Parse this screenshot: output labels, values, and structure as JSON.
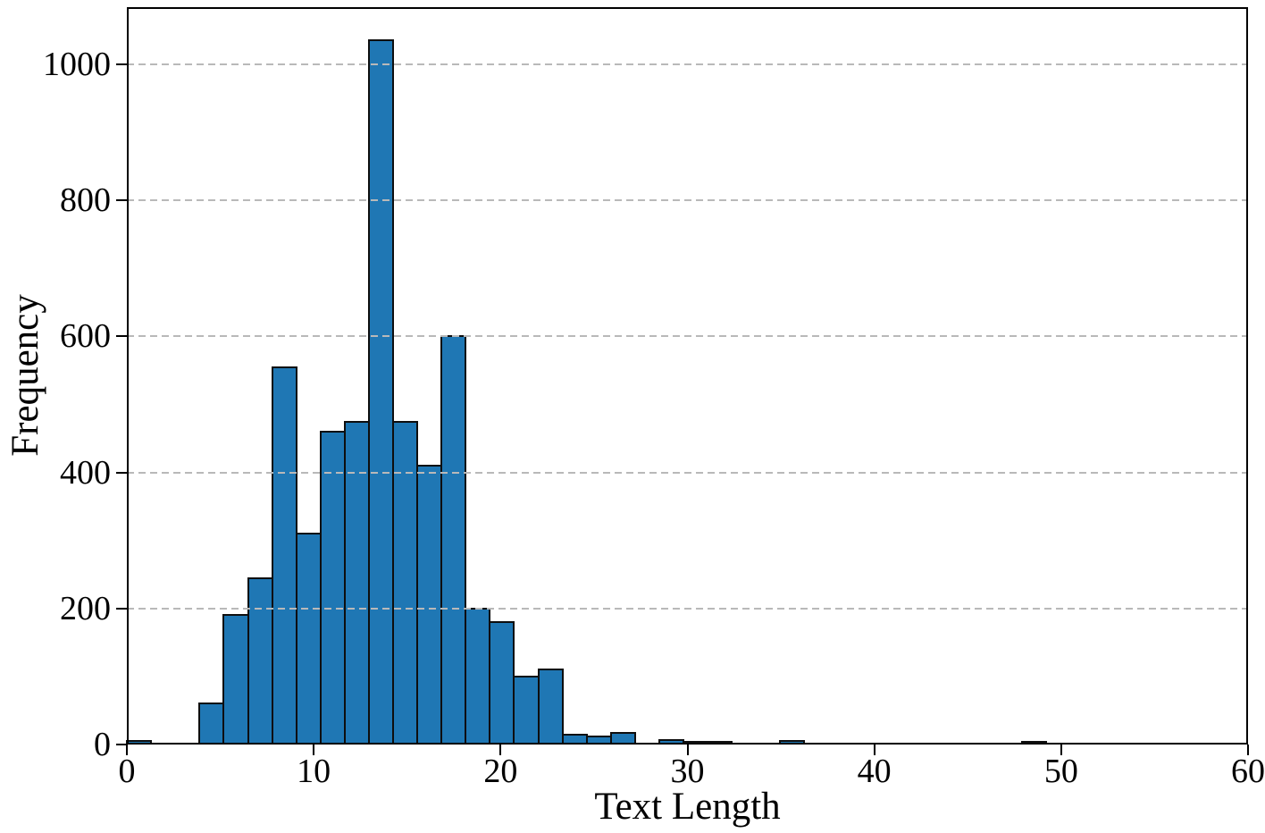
{
  "figure": {
    "background_color": "#ffffff",
    "text_color": "#000000"
  },
  "chart_data": {
    "type": "bar",
    "subtype": "histogram",
    "title": "",
    "xlabel": "Text Length",
    "ylabel": "Frequency",
    "xlim": [
      0,
      60
    ],
    "ylim": [
      0,
      1084
    ],
    "xticks": [
      0,
      10,
      20,
      30,
      40,
      50,
      60
    ],
    "yticks": [
      0,
      200,
      400,
      600,
      800,
      1000
    ],
    "grid": "horizontal-dashed-over-bars",
    "legend_position": "none",
    "bar_color": "#1f77b4",
    "bar_edge_color": "#0e0e0e",
    "gridline_color": "#b9b9b9",
    "spine_color": "#000000",
    "bins": [
      {
        "x0": 0.0,
        "x1": 1.3,
        "count": 5
      },
      {
        "x0": 3.89,
        "x1": 5.18,
        "count": 60
      },
      {
        "x0": 5.18,
        "x1": 6.48,
        "count": 190
      },
      {
        "x0": 6.48,
        "x1": 7.77,
        "count": 245
      },
      {
        "x0": 7.77,
        "x1": 9.07,
        "count": 555
      },
      {
        "x0": 9.07,
        "x1": 10.36,
        "count": 310
      },
      {
        "x0": 10.36,
        "x1": 11.66,
        "count": 460
      },
      {
        "x0": 11.66,
        "x1": 12.95,
        "count": 475
      },
      {
        "x0": 12.95,
        "x1": 14.25,
        "count": 1035
      },
      {
        "x0": 14.25,
        "x1": 15.54,
        "count": 475
      },
      {
        "x0": 15.54,
        "x1": 16.84,
        "count": 410
      },
      {
        "x0": 16.84,
        "x1": 18.13,
        "count": 600
      },
      {
        "x0": 18.13,
        "x1": 19.43,
        "count": 200
      },
      {
        "x0": 19.43,
        "x1": 20.72,
        "count": 180
      },
      {
        "x0": 20.72,
        "x1": 22.02,
        "count": 100
      },
      {
        "x0": 22.02,
        "x1": 23.31,
        "count": 110
      },
      {
        "x0": 23.31,
        "x1": 24.61,
        "count": 15
      },
      {
        "x0": 24.61,
        "x1": 25.9,
        "count": 12
      },
      {
        "x0": 25.9,
        "x1": 27.2,
        "count": 17
      },
      {
        "x0": 28.49,
        "x1": 29.79,
        "count": 7
      },
      {
        "x0": 29.79,
        "x1": 31.08,
        "count": 3
      },
      {
        "x0": 31.08,
        "x1": 32.38,
        "count": 3
      },
      {
        "x0": 34.97,
        "x1": 36.26,
        "count": 5
      },
      {
        "x0": 47.92,
        "x1": 49.21,
        "count": 2
      }
    ]
  }
}
